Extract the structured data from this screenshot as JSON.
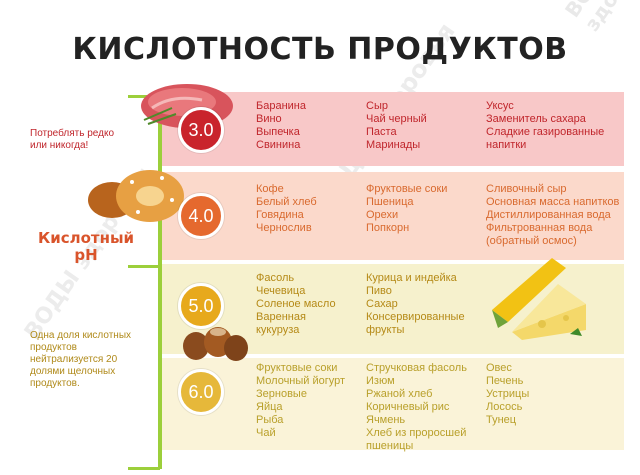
{
  "watermark": "ВОДЫ здоровья",
  "title": "КИСЛОТНОСТЬ ПРОДУКТОВ",
  "side": {
    "note_top": [
      "Потреблять редко",
      "или никогда!"
    ],
    "acid_label": [
      "Кислотный",
      "pH"
    ],
    "note_bottom": [
      "Одна доля кислотных",
      "продуктов",
      "нейтрализуется 20",
      "долями щелочных",
      "продуктов."
    ]
  },
  "levels": [
    {
      "ph": "3.0",
      "color": "#c9242c",
      "cols": [
        [
          "Баранина",
          "Вино",
          "Выпечка",
          "Свинина"
        ],
        [
          "Сыр",
          "Чай черный",
          "Паста",
          "Маринады"
        ],
        [
          "Уксус",
          "Заменитель сахара",
          "Сладкие газированные",
          "напитки"
        ]
      ]
    },
    {
      "ph": "4.0",
      "color": "#e5692e",
      "cols": [
        [
          "Кофе",
          "Белый хлеб",
          "Говядина",
          "Чернослив"
        ],
        [
          "Фруктовые соки",
          "Пшеница",
          "Орехи",
          "Попкорн"
        ],
        [
          "Сливочный сыр",
          "Основная масса напитков",
          "Дистиллированная вода",
          "Фильтрованная вода",
          "(обратный осмос)"
        ]
      ]
    },
    {
      "ph": "5.0",
      "color": "#e7a91c",
      "cols": [
        [
          "Фасоль",
          "Чечевица",
          "Соленое масло",
          "Варенная",
          "кукуруза"
        ],
        [
          "Курица и индейка",
          "Пиво",
          "Сахар",
          "Консервированные",
          "фрукты"
        ]
      ]
    },
    {
      "ph": "6.0",
      "color": "#e6b83a",
      "cols": [
        [
          "Фруктовые соки",
          "Молочный йогурт",
          "Зерновые",
          "Яйца",
          "Рыба",
          "Чай"
        ],
        [
          "Стручковая фасоль",
          "Изюм",
          "Ржаной хлеб",
          "Коричневый рис",
          "Ячмень",
          "Хлеб из проросшей",
          "пшеницы"
        ],
        [
          "Овес",
          "Печень",
          "Устрицы",
          "Лосось",
          "Тунец"
        ]
      ]
    }
  ],
  "images": [
    "meat",
    "pastry",
    "hazelnuts",
    "corn-and-cheese"
  ]
}
